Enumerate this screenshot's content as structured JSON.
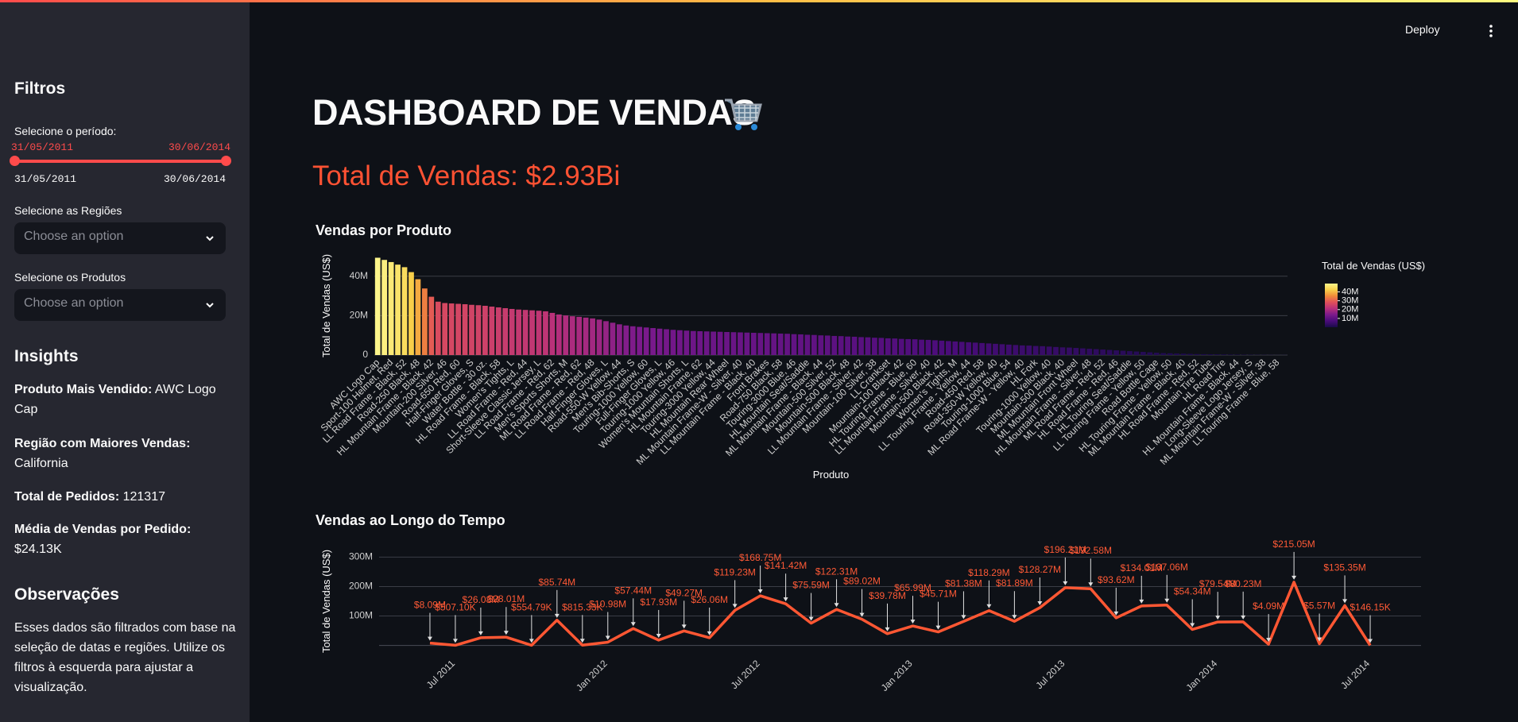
{
  "app": {
    "deploy": "Deploy"
  },
  "sidebar": {
    "title": "Filtros",
    "period_label": "Selecione o período:",
    "period_start": "31/05/2011",
    "period_end": "30/06/2014",
    "min_label": "31/05/2011",
    "max_label": "30/06/2014",
    "regions_label": "Selecione as Regiões",
    "regions_placeholder": "Choose an option",
    "products_label": "Selecione os Produtos",
    "products_placeholder": "Choose an option",
    "insights_title": "Insights",
    "insights": [
      {
        "label": "Produto Mais Vendido:",
        "value": "AWC Logo Cap"
      },
      {
        "label": "Região com Maiores Vendas:",
        "value": "California"
      },
      {
        "label": "Total de Pedidos:",
        "value": 121317
      },
      {
        "label": "Média de Vendas por Pedido:",
        "value": "$24.13K"
      }
    ],
    "notes_title": "Observações",
    "notes": "Esses dados são filtrados com base na seleção de datas e regiões. Utilize os filtros à esquerda para ajustar a visualização."
  },
  "header": {
    "title": "DASHBOARD DE VENDAS",
    "total": "Total de Vendas: $2.93Bi"
  },
  "chart_data": [
    {
      "type": "bar",
      "title": "Vendas por Produto",
      "x_label": "Produto",
      "y_label": "Total de Vendas (US$)",
      "colorbar_title": "Total de Vendas (US$)",
      "categories": [
        "AWC Logo Cap",
        null,
        "Sport-100 Helmet, Red",
        null,
        "LL Road Frame - Black, 52",
        null,
        "Road-250 Black, 48",
        null,
        "HL Mountain Frame - Black, 42",
        null,
        "Mountain-200 Silver, 46",
        null,
        "Road-650 Red, 60",
        null,
        "Half-Finger Gloves, S",
        null,
        "Water Bottle - 30 oz.",
        null,
        "HL Road Frame - Black, 58",
        null,
        "Women's Tights, L",
        null,
        "LL Road Frame - Red, 44",
        null,
        "Short-Sleeve Classic Jersey, L",
        null,
        "LL Road Frame - Red, 62",
        null,
        "Men's Sports Shorts, M",
        null,
        "ML Road Frame - Red, 62",
        null,
        "LL Road Frame - Red, 48",
        null,
        "Half-Finger Gloves, L",
        null,
        "Road-550-W Yellow, 44",
        null,
        "Men's Bib-Shorts, S",
        null,
        "Touring-1000 Yellow, 60",
        null,
        "Full-Finger Gloves, L",
        null,
        "Touring-1000 Yellow, 46",
        null,
        "Women's Mountain Shorts, L",
        null,
        "HL Mountain Frame, 62",
        null,
        "Touring-3000 Yellow, 44",
        null,
        "HL Mountain Rear Wheel",
        null,
        "ML Mountain Frame-W - Silver, 40",
        null,
        "LL Mountain Frame - Black, 40",
        null,
        "Front Brakes",
        null,
        "Road-750 Black, 58",
        null,
        "Touring-3000 Blue, 46",
        null,
        "HL Mountain Seat/Saddle",
        null,
        "ML Mountain Frame - Black, 44",
        null,
        "Mountain-500 Silver, 52",
        null,
        "Mountain-500 Black, 48",
        null,
        "LL Mountain Frame - Silver, 42",
        null,
        "Mountain-100 Silver, 38",
        null,
        "LL Crankset",
        null,
        "Mountain-100 Black, 42",
        null,
        "HL Touring Frame - Blue, 60",
        null,
        "LL Mountain Frame - Silver, 40",
        null,
        "Mountain-500 Black, 42",
        null,
        "Women's Tights, M",
        null,
        "LL Touring Frame - Yellow, 44",
        null,
        "Road-450 Red, 58",
        null,
        "Road-350-W Yellow, 40",
        null,
        "Touring-1000 Blue, 54",
        null,
        "ML Road Frame-W - Yellow, 40",
        null,
        "HL Fork",
        null,
        "Touring-1000 Yellow, 40",
        null,
        "Mountain-500 Black, 40",
        null,
        "ML Mountain Front Wheel",
        null,
        "HL Mountain Frame - Silver, 48",
        null,
        "ML Road Frame - Red, 52",
        null,
        "HL Road Frame - Red, 46",
        null,
        "HL Touring Seat/Saddle",
        null,
        "LL Touring Frame - Yellow, 50",
        null,
        "Road Bottle Cage",
        null,
        "HL Touring Frame - Yellow, 50",
        null,
        "ML Mountain Frame - Black, 40",
        null,
        "HL Road Frame - Red, 52",
        null,
        "Mountain Tire Tube",
        null,
        "HL Road Tire",
        null,
        "HL Mountain Frame - Black, 44",
        null,
        "Long-Sleeve Logo Jersey, S",
        null,
        "ML Mountain Frame-W - Silver, 38",
        null,
        "LL Touring Frame - Blue, 58",
        null
      ],
      "values": [
        49400000.0,
        48300000.0,
        47200000.0,
        45900000.0,
        44600000.0,
        42100000.0,
        38500000.0,
        33800000.0,
        29600000.0,
        27100000.0,
        26400000.0,
        26200000.0,
        26000000.0,
        25800000.0,
        25500000.0,
        25300000.0,
        25000000.0,
        24600000.0,
        24200000.0,
        23800000.0,
        23400000.0,
        23100000.0,
        22900000.0,
        22700000.0,
        22500000.0,
        22200000.0,
        21400000.0,
        20600000.0,
        20100000.0,
        19700000.0,
        19400000.0,
        19000000.0,
        18600000.0,
        18000000.0,
        17200000.0,
        16400000.0,
        15600000.0,
        15000000.0,
        14600000.0,
        14300000.0,
        14000000.0,
        13700000.0,
        13400000.0,
        13100000.0,
        12800000.0,
        12600000.0,
        12400000.0,
        12200000.0,
        12100000.0,
        12000000.0,
        11900000.0,
        11800000.0,
        11700000.0,
        11600000.0,
        11500000.0,
        11400000.0,
        11300000.0,
        11200000.0,
        11100000.0,
        11000000.0,
        10900000.0,
        10800000.0,
        10600000.0,
        10500000.0,
        10300000.0,
        10200000.0,
        10000000.0,
        9900000.0,
        9700000.0,
        9600000.0,
        9400000.0,
        9300000.0,
        9100000.0,
        9000000.0,
        8800000.0,
        8700000.0,
        8500000.0,
        8400000.0,
        8200000.0,
        8100000.0,
        8000000.0,
        7800000.0,
        7700000.0,
        7500000.0,
        7300000.0,
        7100000.0,
        6900000.0,
        6700000.0,
        6500000.0,
        6300000.0,
        6100000.0,
        5900000.0,
        5700000.0,
        5500000.0,
        5300000.0,
        5100000.0,
        4900000.0,
        4800000.0,
        4600000.0,
        4500000.0,
        4300000.0,
        4100000.0,
        3900000.0,
        3800000.0,
        3600000.0,
        3400000.0,
        3200000.0,
        3000000.0,
        2800000.0,
        2600000.0,
        2400000.0,
        2200000.0,
        2000000.0,
        1800000.0,
        1600000.0,
        1400000.0,
        1200000.0,
        1000000.0,
        900000.0,
        800000.0,
        700000.0,
        600000.0,
        500000.0,
        450000.0,
        400000.0,
        350000.0,
        300000.0,
        250000.0,
        200000.0,
        180000.0,
        150000.0,
        120000.0,
        100000.0,
        80000.0,
        60000.0,
        50000.0
      ],
      "colorscale": [
        "#1a0b4a",
        "#4a0c7a",
        "#7b1a8c",
        "#b8307a",
        "#e0505a",
        "#f08a3a",
        "#f8d04a",
        "#fcf58a"
      ],
      "ylim": [
        0,
        50000000.0
      ],
      "yticks": [
        0,
        {
          "value": 20000000.0,
          "label": "20M"
        },
        {
          "value": 40000000.0,
          "label": "40M"
        }
      ],
      "grid": true,
      "colorbar_ticks": [
        {
          "value": 10000000.0,
          "label": "10M"
        },
        {
          "value": 20000000.0,
          "label": "20M"
        },
        {
          "value": 30000000.0,
          "label": "30M"
        },
        {
          "value": 40000000.0,
          "label": "40M"
        }
      ]
    },
    {
      "type": "line",
      "title": "Vendas ao Longo do Tempo",
      "y_label": "Total de Vendas (US$)",
      "color": "#ff5733",
      "x": [
        "2011-05",
        "2011-06",
        "2011-07",
        "2011-08",
        "2011-09",
        "2011-10",
        "2011-11",
        "2011-12",
        "2012-01",
        "2012-02",
        "2012-03",
        "2012-04",
        "2012-05",
        "2012-06",
        "2012-07",
        "2012-08",
        "2012-09",
        "2012-10",
        "2012-11",
        "2012-12",
        "2013-01",
        "2013-02",
        "2013-03",
        "2013-04",
        "2013-05",
        "2013-06",
        "2013-07",
        "2013-08",
        "2013-09",
        "2013-10",
        "2013-11",
        "2013-12",
        "2014-01",
        "2014-02",
        "2014-03",
        "2014-04",
        "2014-05",
        "2014-06"
      ],
      "values": [
        8090000.0,
        507100,
        26080000.0,
        28010000.0,
        554790,
        85740000.0,
        815330,
        10980000.0,
        57440000.0,
        17930000.0,
        49270000.0,
        26060000.0,
        119230000.0,
        168750000.0,
        141420000.0,
        75590000.0,
        122310000.0,
        89020000.0,
        39780000.0,
        65990000.0,
        45710000.0,
        81380000.0,
        118290000.0,
        81890000.0,
        128270000.0,
        196210000.0,
        192580000.0,
        93620000.0,
        134010000.0,
        137060000.0,
        54340000.0,
        79540000.0,
        80230000.0,
        4090000.0,
        215050000.0,
        5570000.0,
        135350000.0,
        146150
      ],
      "value_labels": [
        "$8.09M",
        "$507.10K",
        "$26.08M",
        "$28.01M",
        "$554.79K",
        "$85.74M",
        "$815.33K",
        "$10.98M",
        "$57.44M",
        "$17.93M",
        "$49.27M",
        "$26.06M",
        "$119.23M",
        "$168.75M",
        "$141.42M",
        "$75.59M",
        "$122.31M",
        "$89.02M",
        "$39.78M",
        "$65.99M",
        "$45.71M",
        "$81.38M",
        "$118.29M",
        "$81.89M",
        "$128.27M",
        "$196.21M",
        "$192.58M",
        "$93.62M",
        "$134.01M",
        "$137.06M",
        "$54.34M",
        "$79.54M",
        "$80.23M",
        "$4.09M",
        "$215.05M",
        "$5.57M",
        "$135.35M",
        "$146.15K"
      ],
      "xlim": [
        "2011-04",
        "2014-09"
      ],
      "xticks": [
        {
          "value": "2011-07",
          "label": "Jul 2011"
        },
        {
          "value": "2012-01",
          "label": "Jan 2012"
        },
        {
          "value": "2012-07",
          "label": "Jul 2012"
        },
        {
          "value": "2013-01",
          "label": "Jan 2013"
        },
        {
          "value": "2013-07",
          "label": "Jul 2013"
        },
        {
          "value": "2014-01",
          "label": "Jan 2014"
        },
        {
          "value": "2014-07",
          "label": "Jul 2014"
        }
      ],
      "ylim": [
        -20000000.0,
        320000000.0
      ],
      "yticks": [
        {
          "value": 100000000.0,
          "label": "100M"
        },
        {
          "value": 200000000.0,
          "label": "200M"
        },
        {
          "value": 300000000.0,
          "label": "300M"
        }
      ],
      "grid": true,
      "zeroline": true
    }
  ]
}
